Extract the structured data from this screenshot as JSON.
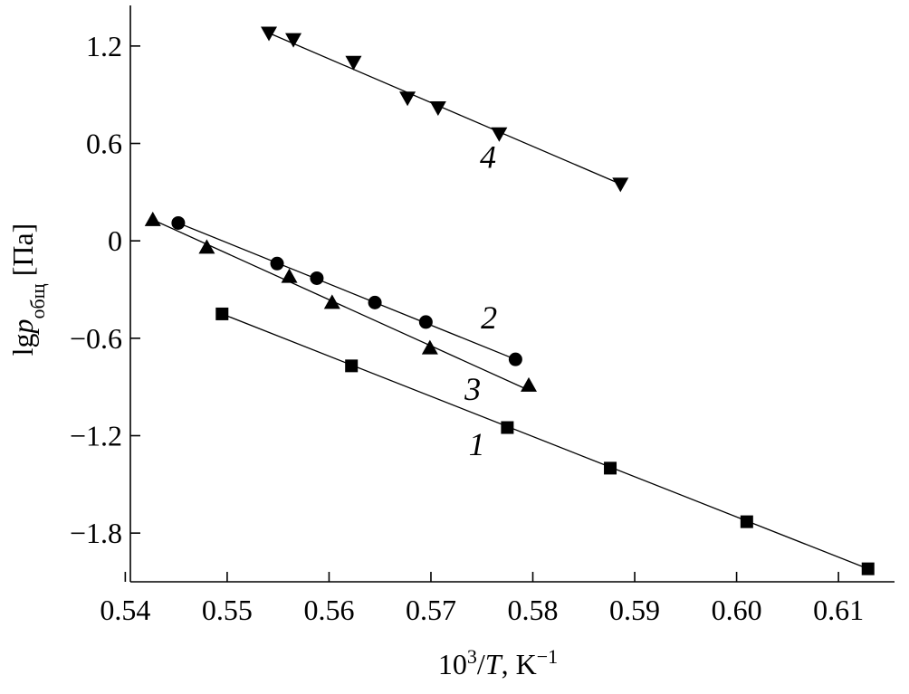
{
  "chart_data": {
    "type": "scatter",
    "xlabel": "10³/T, K⁻¹",
    "ylabel": "lgp_общ [Па]",
    "xlim": [
      0.5405,
      0.6155
    ],
    "ylim": [
      -2.1,
      1.45
    ],
    "x_ticks": [
      "0.54",
      "0.55",
      "0.56",
      "0.57",
      "0.58",
      "0.59",
      "0.60",
      "0.61"
    ],
    "x_tick_values": [
      0.54,
      0.55,
      0.56,
      0.57,
      0.58,
      0.59,
      0.6,
      0.61
    ],
    "y_ticks": [
      "1.2",
      "0.6",
      "0",
      "-0.6",
      "-1.2",
      "-1.8"
    ],
    "y_tick_values": [
      1.2,
      0.6,
      0,
      -0.6,
      -1.2,
      -1.8
    ],
    "grid": false,
    "legend": "none",
    "series": [
      {
        "label": "1",
        "marker": "square",
        "points": [
          [
            0.5495,
            -0.45
          ],
          [
            0.5622,
            -0.77
          ],
          [
            0.5775,
            -1.15
          ],
          [
            0.5876,
            -1.4
          ],
          [
            0.601,
            -1.73
          ],
          [
            0.6129,
            -2.02
          ]
        ],
        "fit": [
          [
            0.5495,
            -0.45
          ],
          [
            0.6129,
            -2.02
          ]
        ],
        "label_at": [
          0.5745,
          -1.32
        ]
      },
      {
        "label": "2",
        "marker": "circle",
        "points": [
          [
            0.5452,
            0.11
          ],
          [
            0.5549,
            -0.14
          ],
          [
            0.5588,
            -0.23
          ],
          [
            0.5645,
            -0.38
          ],
          [
            0.5695,
            -0.5
          ],
          [
            0.5783,
            -0.73
          ]
        ],
        "fit": [
          [
            0.5452,
            0.11
          ],
          [
            0.5783,
            -0.73
          ]
        ],
        "label_at": [
          0.5757,
          -0.54
        ]
      },
      {
        "label": "3",
        "marker": "triangle-up",
        "points": [
          [
            0.5427,
            0.13
          ],
          [
            0.548,
            -0.04
          ],
          [
            0.5561,
            -0.22
          ],
          [
            0.5603,
            -0.38
          ],
          [
            0.5699,
            -0.66
          ],
          [
            0.5796,
            -0.89
          ]
        ],
        "fit": [
          [
            0.5427,
            0.13
          ],
          [
            0.5796,
            -0.92
          ]
        ],
        "label_at": [
          0.5741,
          -0.98
        ]
      },
      {
        "label": "4",
        "marker": "triangle-down",
        "points": [
          [
            0.5541,
            1.28
          ],
          [
            0.5565,
            1.24
          ],
          [
            0.5624,
            1.1
          ],
          [
            0.5677,
            0.88
          ],
          [
            0.5707,
            0.82
          ],
          [
            0.5767,
            0.66
          ],
          [
            0.5886,
            0.35
          ]
        ],
        "fit": [
          [
            0.5541,
            1.28
          ],
          [
            0.5886,
            0.35
          ]
        ],
        "label_at": [
          0.5756,
          0.45
        ]
      }
    ]
  }
}
